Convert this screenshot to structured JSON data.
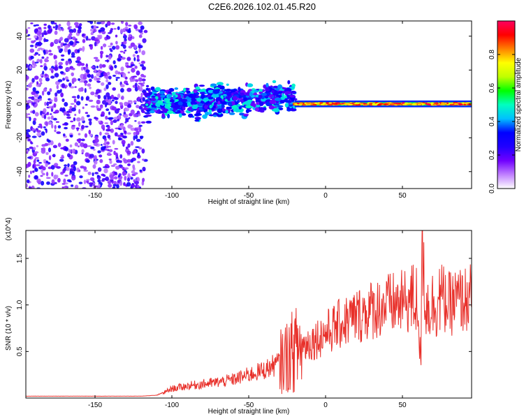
{
  "title": "C2E6.2026.102.01.45.R20",
  "chart_data": [
    {
      "type": "heatmap",
      "xlabel": "Height of straight line (km)",
      "ylabel": "Frequency (Hz)",
      "xlim": [
        -195,
        95
      ],
      "ylim": [
        -50,
        49
      ],
      "xticks": [
        -150,
        -100,
        -50,
        0,
        50
      ],
      "yticks": [
        -40,
        -20,
        0,
        20,
        40
      ],
      "colorbar": {
        "label": "Normalized spectral amplitude",
        "range": [
          0,
          1
        ],
        "ticks": [
          "0.0",
          "0.2",
          "0.4",
          "0.6",
          "0.8"
        ],
        "colormap": [
          "#ffffff",
          "#c080ff",
          "#7000ff",
          "#2000ff",
          "#0000ff",
          "#00c0ff",
          "#00ffc0",
          "#00ff00",
          "#c0ff00",
          "#ffff00",
          "#ff8000",
          "#ff0000",
          "#ff0060"
        ]
      },
      "regions": [
        {
          "x": [
            -195,
            -117
          ],
          "freq_min": -50,
          "freq_max": 49,
          "amplitude": "0.0-0.3 (noise)"
        },
        {
          "x": [
            -117,
            -20
          ],
          "freq_center": 0,
          "freq_spread": 8,
          "amplitude": "0.2-0.5"
        },
        {
          "x": [
            -20,
            95
          ],
          "freq_center": 0,
          "freq_spread": 1.5,
          "amplitude": "0.6-1.0"
        }
      ]
    },
    {
      "type": "line",
      "xlabel": "Height of straight line (km)",
      "ylabel": "SNR (10 * v/v)",
      "yscale_label": "(x10^4)",
      "xlim": [
        -195,
        95
      ],
      "ylim": [
        0,
        1.8
      ],
      "xticks": [
        -150,
        -100,
        -50,
        0,
        50
      ],
      "yticks": [
        "0.5",
        "1.0",
        "1.5"
      ],
      "series": [
        {
          "color": "#e8302a",
          "x": [
            -195,
            -180,
            -160,
            -140,
            -120,
            -110,
            -105,
            -100,
            -90,
            -80,
            -70,
            -60,
            -50,
            -40,
            -30,
            -25,
            -20,
            -10,
            0,
            10,
            20,
            30,
            40,
            50,
            55,
            60,
            62,
            63,
            65,
            70,
            75,
            80,
            85,
            90,
            95
          ],
          "y": [
            0.02,
            0.02,
            0.02,
            0.02,
            0.02,
            0.03,
            0.06,
            0.1,
            0.13,
            0.15,
            0.17,
            0.2,
            0.25,
            0.3,
            0.38,
            0.45,
            0.52,
            0.6,
            0.7,
            0.8,
            0.88,
            0.95,
            1.0,
            1.02,
            1.05,
            1.05,
            0.3,
            1.8,
            1.0,
            1.0,
            1.1,
            1.0,
            1.05,
            1.05,
            1.08
          ]
        }
      ]
    }
  ]
}
